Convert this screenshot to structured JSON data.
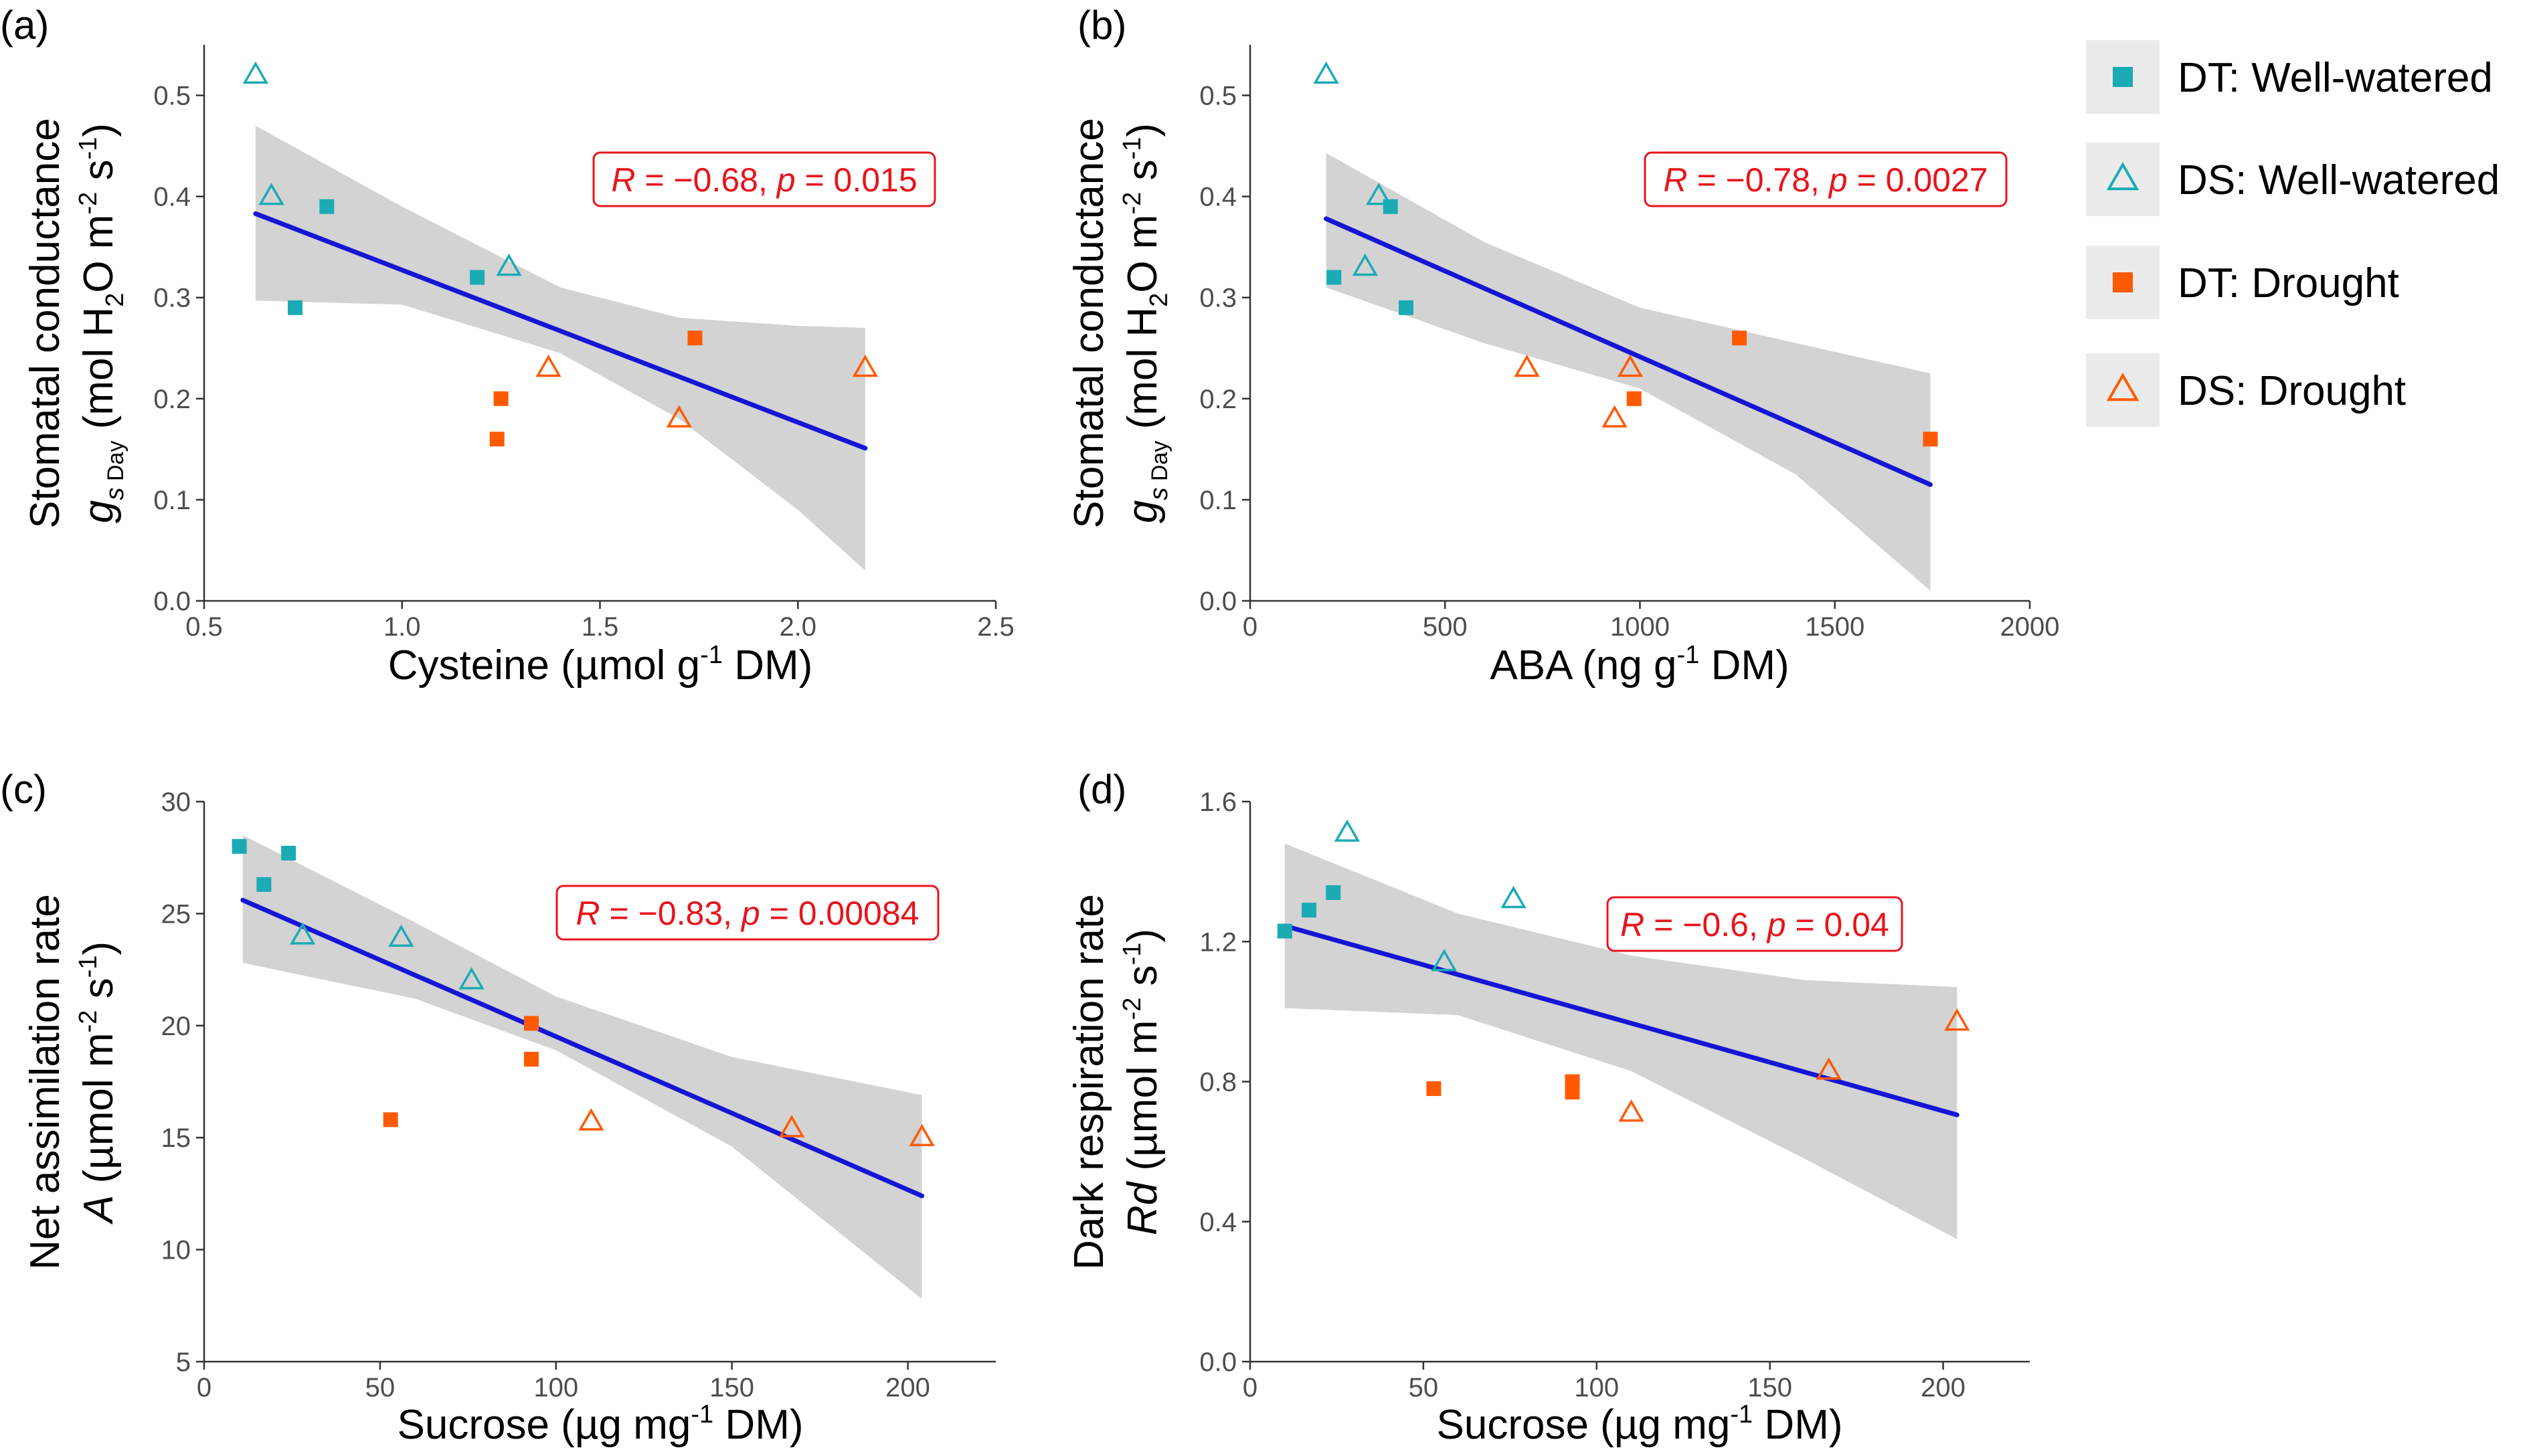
{
  "colors": {
    "dt": "#1aabb5",
    "ds": "#1aabb5",
    "drought": "#ff5a00",
    "fit": "#1515d5",
    "band": "#d3d3d3",
    "ann": "#e8141c"
  },
  "legend": {
    "items": [
      {
        "label": "DT: Well-watered",
        "marker": "square",
        "color": "#1aabb5"
      },
      {
        "label": "DS: Well-watered",
        "marker": "triangle",
        "color": "#1aabb5"
      },
      {
        "label": "DT: Drought",
        "marker": "square",
        "color": "#ff5a00"
      },
      {
        "label": "DS: Drought",
        "marker": "triangle",
        "color": "#ff5a00"
      }
    ]
  },
  "chart_data": [
    {
      "panel": "(a)",
      "type": "scatter",
      "xlabel": "Cysteine (µmol g-1 DM)",
      "ylabel_line1": "Stomatal conductance",
      "ylabel_line2": "gs Day (mol H2O m-2 s-1)",
      "xlim": [
        0.5,
        2.5
      ],
      "ylim": [
        0.0,
        0.55
      ],
      "xticks": [
        0.5,
        1.0,
        1.5,
        2.0,
        2.5
      ],
      "xtick_labels": [
        "0.5",
        "1.0",
        "1.5",
        "2.0",
        "2.5"
      ],
      "yticks": [
        0.0,
        0.1,
        0.2,
        0.3,
        0.4,
        0.5
      ],
      "ytick_labels": [
        "0.0",
        "0.1",
        "0.2",
        "0.3",
        "0.4",
        "0.5"
      ],
      "annotation": {
        "R": "−0.68",
        "p": "0.015"
      },
      "fit": {
        "x0": 0.63,
        "y0": 0.383,
        "x1": 2.17,
        "y1": 0.151
      },
      "band": {
        "x": [
          0.63,
          1.0,
          1.4,
          1.7,
          2.0,
          2.17
        ],
        "upper": [
          0.47,
          0.39,
          0.31,
          0.28,
          0.272,
          0.27
        ],
        "lower": [
          0.297,
          0.293,
          0.245,
          0.18,
          0.09,
          0.03
        ]
      },
      "series": [
        {
          "name": "DT: Well-watered",
          "marker": "square",
          "points": [
            [
              0.73,
              0.29
            ],
            [
              0.81,
              0.39
            ],
            [
              1.19,
              0.32
            ]
          ]
        },
        {
          "name": "DS: Well-watered",
          "marker": "triangle",
          "points": [
            [
              0.63,
              0.52
            ],
            [
              0.67,
              0.4
            ],
            [
              1.27,
              0.33
            ]
          ]
        },
        {
          "name": "DT: Drought",
          "marker": "square",
          "points": [
            [
              1.24,
              0.16
            ],
            [
              1.25,
              0.2
            ],
            [
              1.74,
              0.26
            ]
          ]
        },
        {
          "name": "DS: Drought",
          "marker": "triangle",
          "points": [
            [
              1.37,
              0.23
            ],
            [
              1.7,
              0.18
            ],
            [
              2.17,
              0.23
            ]
          ]
        }
      ]
    },
    {
      "panel": "(b)",
      "type": "scatter",
      "xlabel": "ABA (ng g-1 DM)",
      "ylabel_line1": "Stomatal conductance",
      "ylabel_line2": "gs Day (mol H2O m-2 s-1)",
      "xlim": [
        0,
        2000
      ],
      "ylim": [
        0.0,
        0.55
      ],
      "xticks": [
        0,
        500,
        1000,
        1500,
        2000
      ],
      "xtick_labels": [
        "0",
        "500",
        "1000",
        "1500",
        "2000"
      ],
      "yticks": [
        0.0,
        0.1,
        0.2,
        0.3,
        0.4,
        0.5
      ],
      "ytick_labels": [
        "0.0",
        "0.1",
        "0.2",
        "0.3",
        "0.4",
        "0.5"
      ],
      "annotation": {
        "R": "−0.78",
        "p": "0.0027"
      },
      "fit": {
        "x0": 195,
        "y0": 0.378,
        "x1": 1745,
        "y1": 0.115
      },
      "band": {
        "x": [
          195,
          600,
          1000,
          1400,
          1745
        ],
        "upper": [
          0.443,
          0.355,
          0.29,
          0.255,
          0.225
        ],
        "lower": [
          0.31,
          0.255,
          0.21,
          0.125,
          0.01
        ]
      },
      "series": [
        {
          "name": "DT: Well-watered",
          "marker": "square",
          "points": [
            [
              215,
              0.32
            ],
            [
              360,
              0.39
            ],
            [
              400,
              0.29
            ]
          ]
        },
        {
          "name": "DS: Well-watered",
          "marker": "triangle",
          "points": [
            [
              195,
              0.52
            ],
            [
              295,
              0.33
            ],
            [
              330,
              0.4
            ]
          ]
        },
        {
          "name": "DT: Drought",
          "marker": "square",
          "points": [
            [
              985,
              0.2
            ],
            [
              1255,
              0.26
            ],
            [
              1745,
              0.16
            ]
          ]
        },
        {
          "name": "DS: Drought",
          "marker": "triangle",
          "points": [
            [
              710,
              0.23
            ],
            [
              935,
              0.18
            ],
            [
              975,
              0.23
            ]
          ]
        }
      ]
    },
    {
      "panel": "(c)",
      "type": "scatter",
      "xlabel": "Sucrose (µg mg-1 DM)",
      "ylabel_line1": "Net assimilation rate",
      "ylabel_line2": "A (µmol m-2 s-1)",
      "xlim": [
        0,
        225
      ],
      "ylim": [
        5,
        30
      ],
      "xticks": [
        0,
        50,
        100,
        150,
        200
      ],
      "xtick_labels": [
        "0",
        "50",
        "100",
        "150",
        "200"
      ],
      "yticks": [
        5,
        10,
        15,
        20,
        25,
        30
      ],
      "ytick_labels": [
        "5",
        "10",
        "15",
        "20",
        "25",
        "30"
      ],
      "annotation": {
        "R": "−0.83",
        "p": "0.00084"
      },
      "fit": {
        "x0": 11,
        "y0": 25.6,
        "x1": 204,
        "y1": 12.4
      },
      "band": {
        "x": [
          11,
          60,
          100,
          150,
          204
        ],
        "upper": [
          28.5,
          24.6,
          21.3,
          18.6,
          16.9
        ],
        "lower": [
          22.8,
          21.2,
          18.9,
          14.6,
          7.8
        ]
      },
      "series": [
        {
          "name": "DT: Well-watered",
          "marker": "square",
          "points": [
            [
              10,
              28.0
            ],
            [
              17,
              26.3
            ],
            [
              24,
              27.7
            ]
          ]
        },
        {
          "name": "DS: Well-watered",
          "marker": "triangle",
          "points": [
            [
              28,
              24.0
            ],
            [
              56,
              23.9
            ],
            [
              76,
              22.0
            ]
          ]
        },
        {
          "name": "DT: Drought",
          "marker": "square",
          "points": [
            [
              53,
              15.8
            ],
            [
              93,
              20.1
            ],
            [
              93,
              18.5
            ]
          ]
        },
        {
          "name": "DS: Drought",
          "marker": "triangle",
          "points": [
            [
              110,
              15.7
            ],
            [
              167,
              15.4
            ],
            [
              204,
              15.0
            ]
          ]
        }
      ]
    },
    {
      "panel": "(d)",
      "type": "scatter",
      "xlabel": "Sucrose (µg mg-1 DM)",
      "ylabel_line1": "Dark respiration rate",
      "ylabel_line2": "Rd (µmol m-2 s-1)",
      "xlim": [
        0,
        225
      ],
      "ylim": [
        0.0,
        1.6
      ],
      "xticks": [
        0,
        50,
        100,
        150,
        200
      ],
      "xtick_labels": [
        "0",
        "50",
        "100",
        "150",
        "200"
      ],
      "yticks": [
        0.0,
        0.4,
        0.8,
        1.2,
        1.6
      ],
      "ytick_labels": [
        "0.0",
        "0.4",
        "0.8",
        "1.2",
        "1.6"
      ],
      "annotation": {
        "R": "−0.6",
        "p": "0.04"
      },
      "fit": {
        "x0": 10,
        "y0": 1.245,
        "x1": 204,
        "y1": 0.705
      },
      "band": {
        "x": [
          10,
          60,
          110,
          160,
          204
        ],
        "upper": [
          1.48,
          1.28,
          1.16,
          1.09,
          1.07
        ],
        "lower": [
          1.01,
          0.99,
          0.83,
          0.58,
          0.35
        ]
      },
      "series": [
        {
          "name": "DT: Well-watered",
          "marker": "square",
          "points": [
            [
              10,
              1.23
            ],
            [
              17,
              1.29
            ],
            [
              24,
              1.34
            ]
          ]
        },
        {
          "name": "DS: Well-watered",
          "marker": "triangle",
          "points": [
            [
              28,
              1.51
            ],
            [
              56,
              1.14
            ],
            [
              76,
              1.32
            ]
          ]
        },
        {
          "name": "DT: Drought",
          "marker": "square",
          "points": [
            [
              53,
              0.78
            ],
            [
              93,
              0.8
            ],
            [
              93,
              0.77
            ]
          ]
        },
        {
          "name": "DS: Drought",
          "marker": "triangle",
          "points": [
            [
              110,
              0.71
            ],
            [
              167,
              0.83
            ],
            [
              204,
              0.97
            ]
          ]
        }
      ]
    }
  ]
}
